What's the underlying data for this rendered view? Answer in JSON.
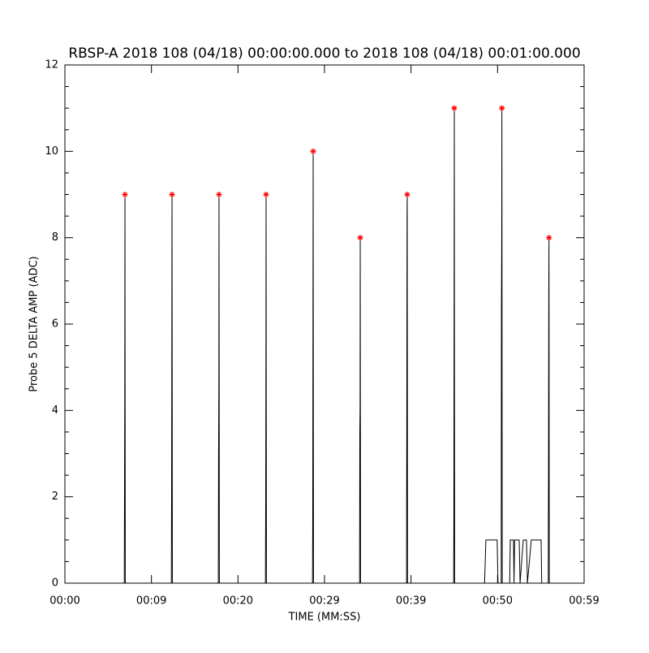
{
  "chart_data": {
    "type": "line",
    "title": "RBSP-A 2018 108 (04/18) 00:00:00.000 to 2018 108 (04/18) 00:01:00.000",
    "xlabel": "TIME (MM:SS)",
    "ylabel": "Probe 5 DELTA AMP (ADC)",
    "xlim": [
      0,
      60
    ],
    "ylim": [
      0,
      12
    ],
    "xticks": [
      {
        "value": 0,
        "label": "00:00"
      },
      {
        "value": 10,
        "label": "00:09"
      },
      {
        "value": 20,
        "label": "00:20"
      },
      {
        "value": 30,
        "label": "00:29"
      },
      {
        "value": 40,
        "label": "00:39"
      },
      {
        "value": 50,
        "label": "00:50"
      },
      {
        "value": 60,
        "label": "00:59"
      }
    ],
    "yticks": [
      0,
      2,
      4,
      6,
      8,
      10,
      12
    ],
    "series": [
      {
        "color": "#000000",
        "marker": "none",
        "x": [
          0,
          6.86,
          6.89,
          6.92,
          6.94,
          6.98,
          12.3,
          12.33,
          12.36,
          12.38,
          12.42,
          17.73,
          17.76,
          17.79,
          17.81,
          17.85,
          23.17,
          23.2,
          23.23,
          23.25,
          23.29,
          28.61,
          28.64,
          28.67,
          28.69,
          28.73,
          34.05,
          34.08,
          34.11,
          34.13,
          34.17,
          39.48,
          39.51,
          39.54,
          39.56,
          39.6,
          44.92,
          44.95,
          44.98,
          45.0,
          45.04,
          48.5,
          48.65,
          49.95,
          50.05,
          50.42,
          50.45,
          50.48,
          50.5,
          50.54,
          51.4,
          51.47,
          51.84,
          51.9,
          51.97,
          52.5,
          52.6,
          52.97,
          53.34,
          53.45,
          53.9,
          55.03,
          55.1,
          55.86,
          55.89,
          55.92,
          55.94,
          55.98,
          60
        ],
        "values": [
          0,
          0,
          2,
          4.5,
          9,
          0,
          0,
          2,
          6.5,
          9,
          0,
          0,
          3,
          4.5,
          9,
          0,
          0,
          1.5,
          5,
          9,
          0,
          0,
          1.5,
          6.5,
          10,
          0,
          0,
          3.5,
          4,
          8,
          0,
          0,
          4,
          8.5,
          9,
          0,
          0,
          1.5,
          6.5,
          11,
          0,
          0,
          1,
          1,
          0,
          0,
          6.5,
          8,
          11,
          0,
          0,
          1,
          1,
          0,
          1,
          1,
          0,
          1,
          1,
          0,
          1,
          1,
          0,
          0,
          3,
          7,
          8,
          0,
          0
        ]
      },
      {
        "color": "#ff0000",
        "marker": "asterisk",
        "x": [
          6.94,
          12.38,
          17.81,
          23.25,
          28.69,
          34.13,
          39.56,
          45.0,
          50.5,
          55.94
        ],
        "values": [
          9,
          9,
          9,
          9,
          10,
          8,
          9,
          11,
          11,
          8
        ]
      }
    ]
  }
}
